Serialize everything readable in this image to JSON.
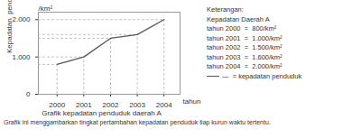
{
  "chart_data": {
    "type": "line",
    "title": "Grafik kepadatan penduduk daerah A",
    "caption": "Grafik ini menggambarkan tingkat pertambahan kepadatan penduduk tiap kurun waktu tertentu.",
    "xlabel": "tahun",
    "ylabel": "Kepadatan  penduduk",
    "x": [
      2000,
      2001,
      2002,
      2003,
      2004
    ],
    "values": [
      800,
      1000,
      1500,
      1600,
      2000
    ],
    "color": "#555555",
    "xlim": [
      1999.3,
      2004.6
    ],
    "xticks": [
      2000,
      2001,
      2002,
      2003,
      2004
    ],
    "ylim": [
      0,
      2200
    ],
    "yticks": [
      0,
      {
        "value": 1000,
        "label": "1.000"
      },
      {
        "value": 2000,
        "label": "2.000"
      }
    ],
    "annotations": [
      "/km²",
      "Keterangan:",
      "Kepadatan Daerah A",
      "tahun 2000  =  800/km²",
      "tahun 2001  =  1.000/km²",
      "tahun 2002  =  1.500/km²",
      "tahun 2003  =  1.600/km²",
      "tahun 2004  =  2.000/km²",
      "—  = kepadatan penduduk"
    ]
  }
}
